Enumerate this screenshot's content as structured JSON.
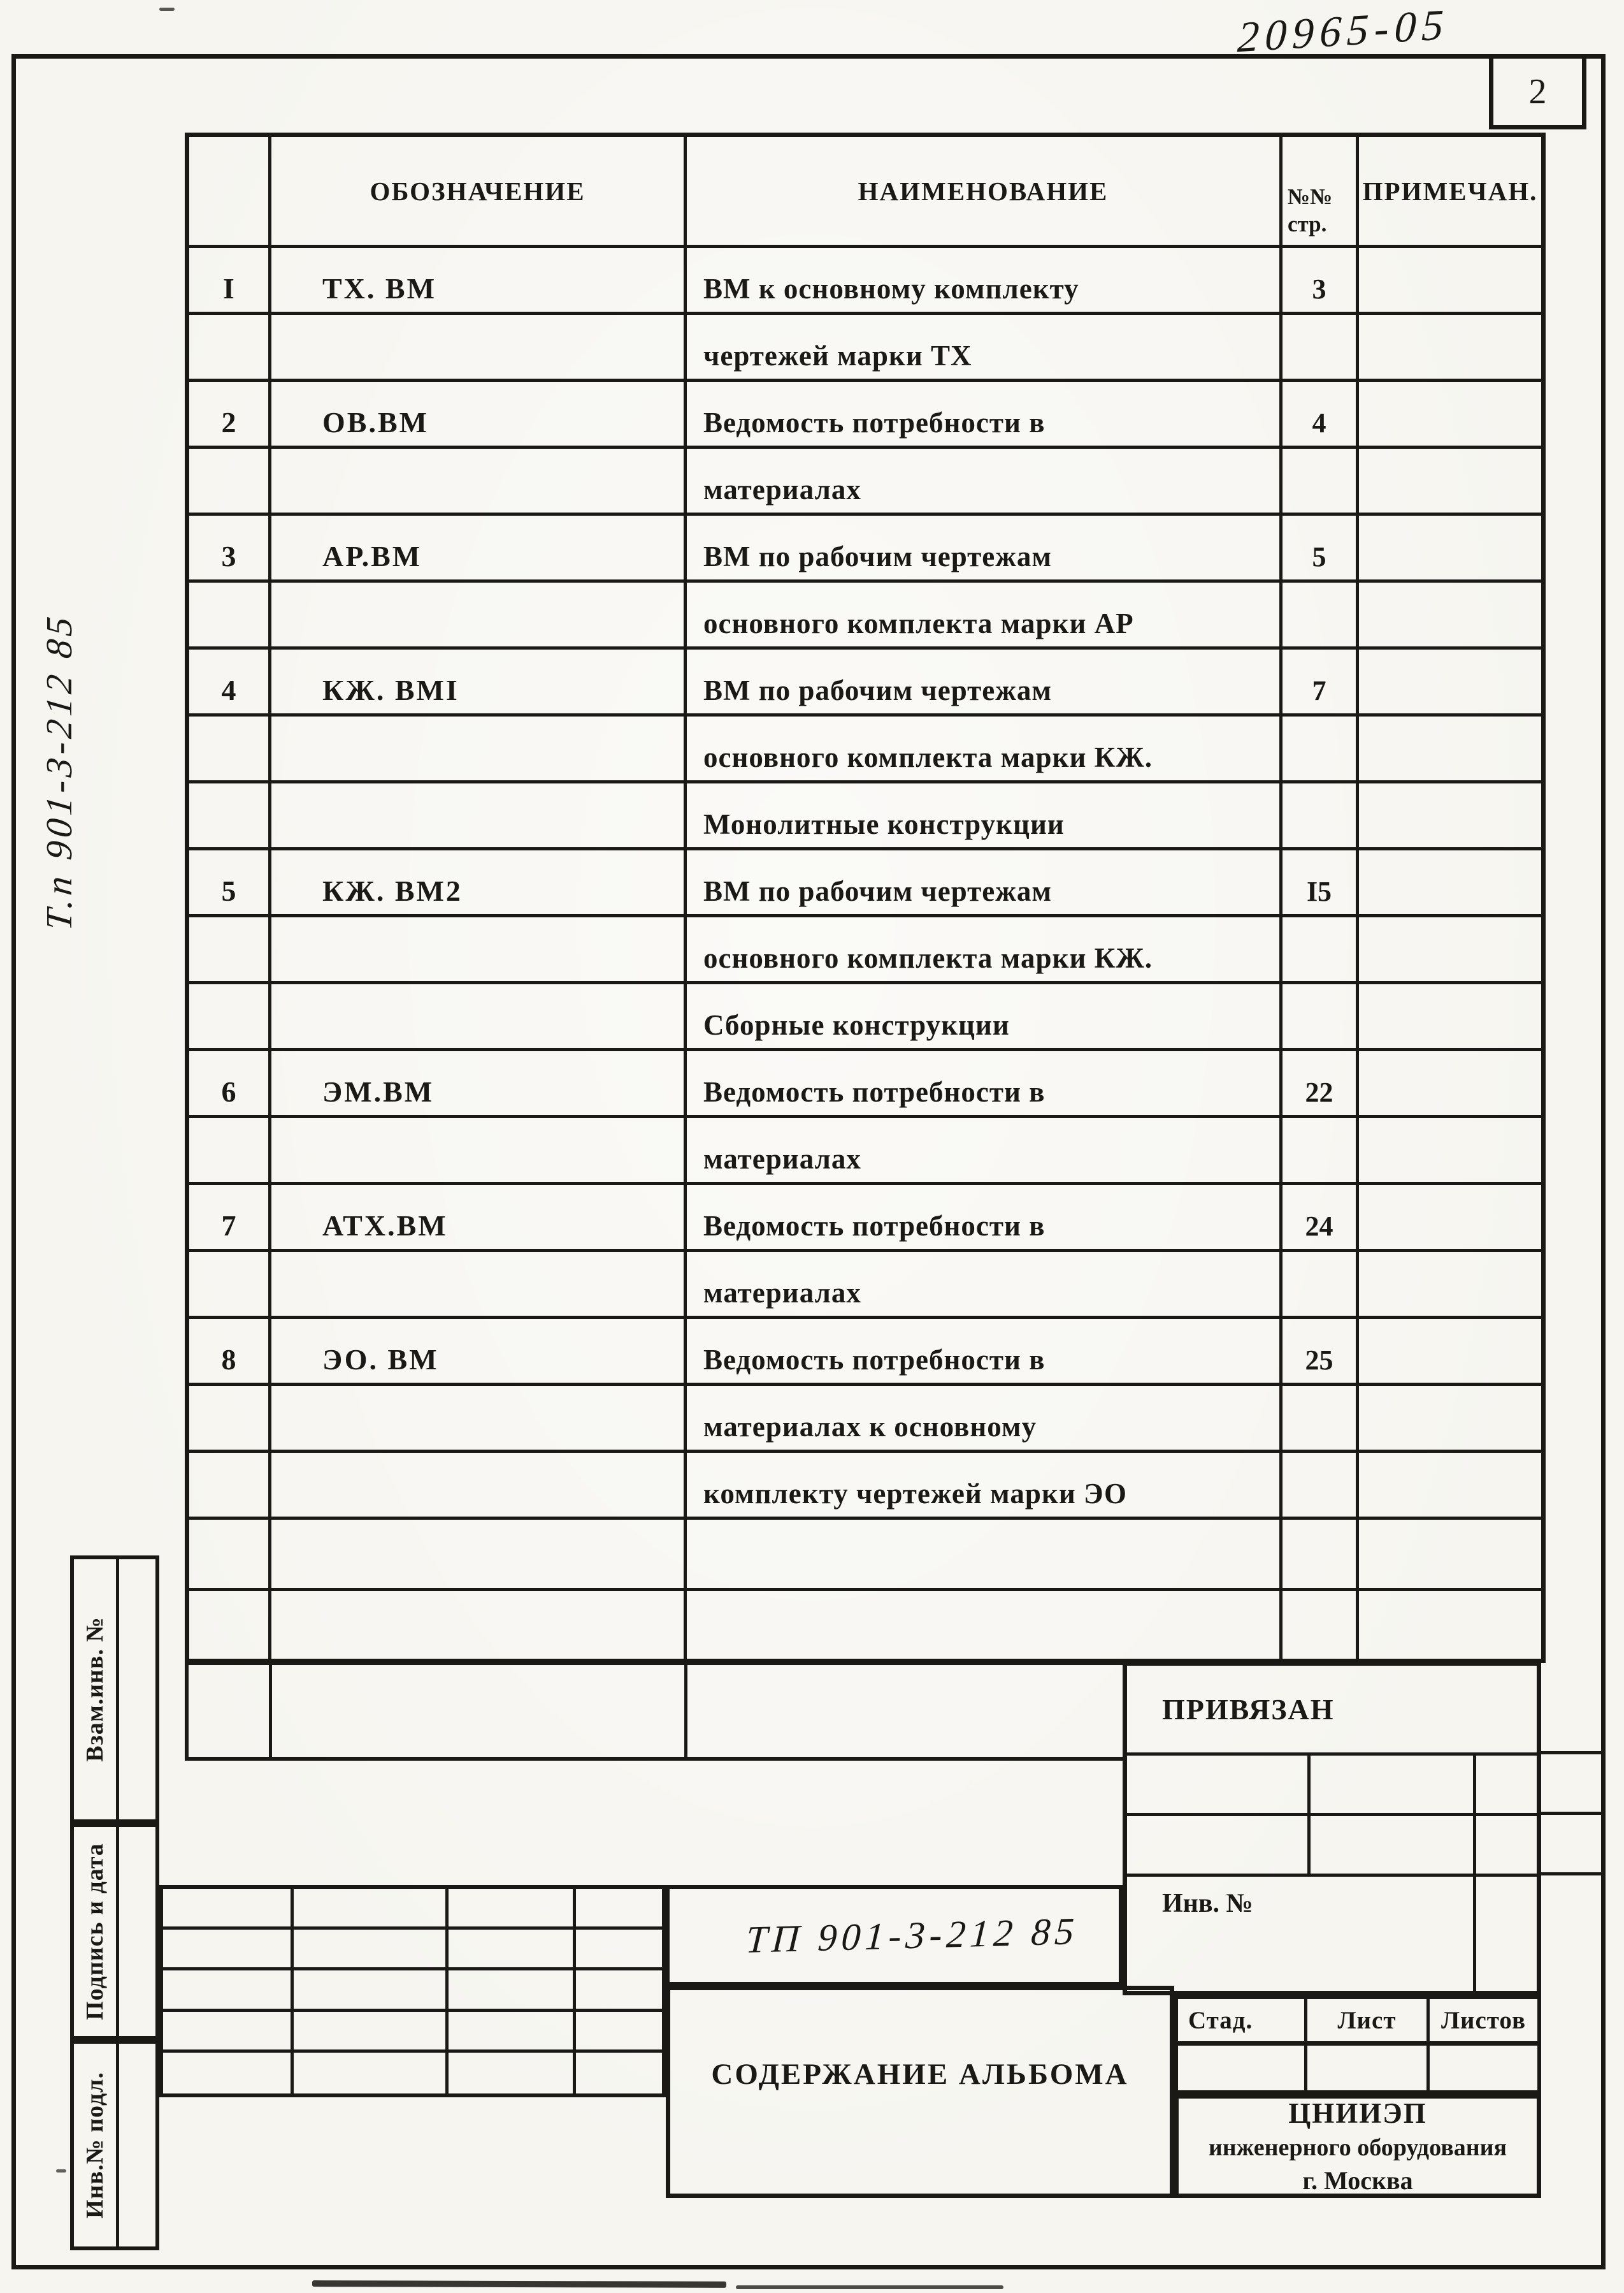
{
  "page": {
    "handwritten_inventory": "20965-05",
    "sheet_number": "2",
    "vertical_note": "Т.п 901-3-212 85",
    "doc_number_handwritten": "ТП 901-3-212 85"
  },
  "table": {
    "headers": {
      "designation": "ОБОЗНАЧЕНИЕ",
      "name": "НАИМЕНОВАНИЕ",
      "pages_line1": "№№",
      "pages_line2": "стр.",
      "note": "ПРИМЕЧАН."
    },
    "rows": [
      {
        "num": "I",
        "code": "ТХ. ВМ",
        "name": "ВМ к основному комплекту",
        "page": "3"
      },
      {
        "num": "",
        "code": "",
        "name": "чертежей марки ТХ",
        "page": ""
      },
      {
        "num": "2",
        "code": "ОВ.ВМ",
        "name": "Ведомость потребности в",
        "page": "4"
      },
      {
        "num": "",
        "code": "",
        "name": "материалах",
        "page": ""
      },
      {
        "num": "3",
        "code": "АР.ВМ",
        "name": "ВМ по рабочим чертежам",
        "page": "5"
      },
      {
        "num": "",
        "code": "",
        "name": "основного комплекта марки АР",
        "page": ""
      },
      {
        "num": "4",
        "code": "КЖ. ВМI",
        "name": "ВМ по рабочим чертежам",
        "page": "7"
      },
      {
        "num": "",
        "code": "",
        "name": "основного комплекта марки КЖ.",
        "page": ""
      },
      {
        "num": "",
        "code": "",
        "name": "Монолитные конструкции",
        "page": ""
      },
      {
        "num": "5",
        "code": "КЖ. ВМ2",
        "name": "ВМ по рабочим чертежам",
        "page": "I5"
      },
      {
        "num": "",
        "code": "",
        "name": "основного комплекта марки КЖ.",
        "page": ""
      },
      {
        "num": "",
        "code": "",
        "name": "Сборные конструкции",
        "page": ""
      },
      {
        "num": "6",
        "code": "ЭМ.ВМ",
        "name": "Ведомость потребности в",
        "page": "22"
      },
      {
        "num": "",
        "code": "",
        "name": "материалах",
        "page": ""
      },
      {
        "num": "7",
        "code": "АТХ.ВМ",
        "name": "Ведомость потребности в",
        "page": "24"
      },
      {
        "num": "",
        "code": "",
        "name": "материалах",
        "page": ""
      },
      {
        "num": "8",
        "code": "ЭО. ВМ",
        "name": "Ведомость потребности в",
        "page": "25"
      },
      {
        "num": "",
        "code": "",
        "name": "материалах к основному",
        "page": ""
      },
      {
        "num": "",
        "code": "",
        "name": "комплекту чертежей марки ЭО",
        "page": ""
      },
      {
        "num": "",
        "code": "",
        "name": "",
        "page": ""
      },
      {
        "num": "",
        "code": "",
        "name": "",
        "page": ""
      }
    ]
  },
  "pinned_block": {
    "title": "ПРИВЯЗАН",
    "inv_label": "Инв. №"
  },
  "title_block": {
    "content_title": "СОДЕРЖАНИЕ АЛЬБОМА",
    "stage_label": "Стад.",
    "sheet_label": "Лист",
    "sheets_label": "Листов",
    "org_line1": "ЦНИИЭП",
    "org_line2": "инженерного оборудования",
    "org_line3": "г. Москва"
  },
  "side_stamps": {
    "replace_inv": "Взам.инв. №",
    "sign_date": "Подпись и дата",
    "inv_orig": "Инв.№ подл."
  }
}
